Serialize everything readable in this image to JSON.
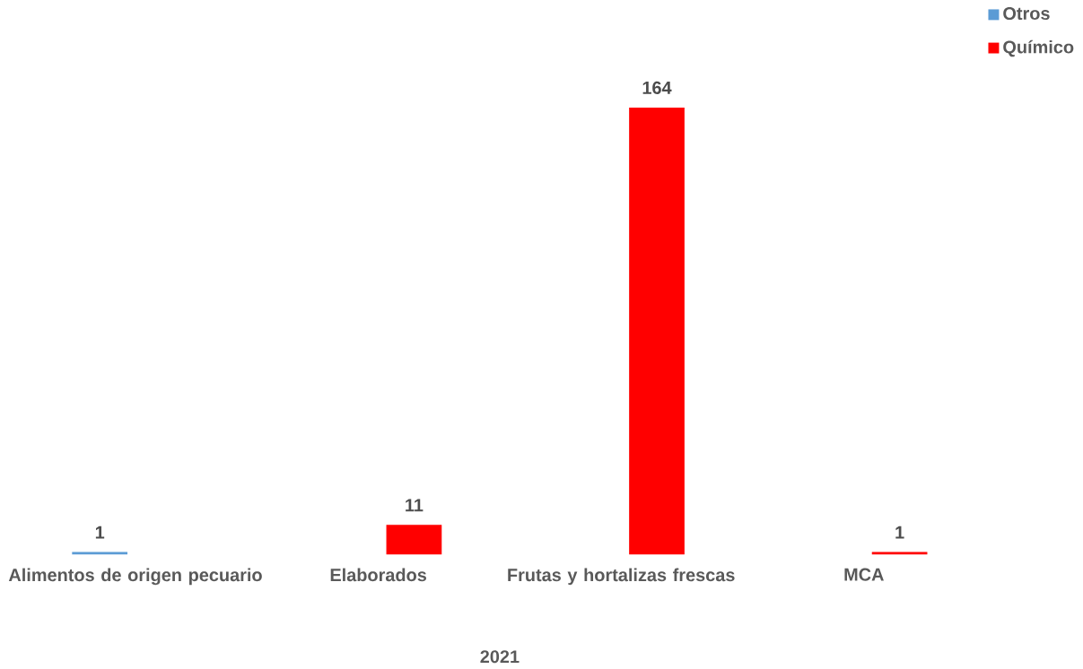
{
  "chart_data": {
    "type": "bar",
    "xlabel": "2021",
    "categories": [
      "Alimentos de origen pecuario",
      "Elaborados",
      "Frutas y hortalizas frescas",
      "MCA"
    ],
    "series": [
      {
        "name": "Otros",
        "color": "#5b9bd5",
        "values": [
          1,
          null,
          null,
          null
        ]
      },
      {
        "name": "Químico",
        "color": "#ff0000",
        "values": [
          null,
          11,
          164,
          1
        ]
      }
    ],
    "data_labels": true,
    "legend": "top right"
  }
}
